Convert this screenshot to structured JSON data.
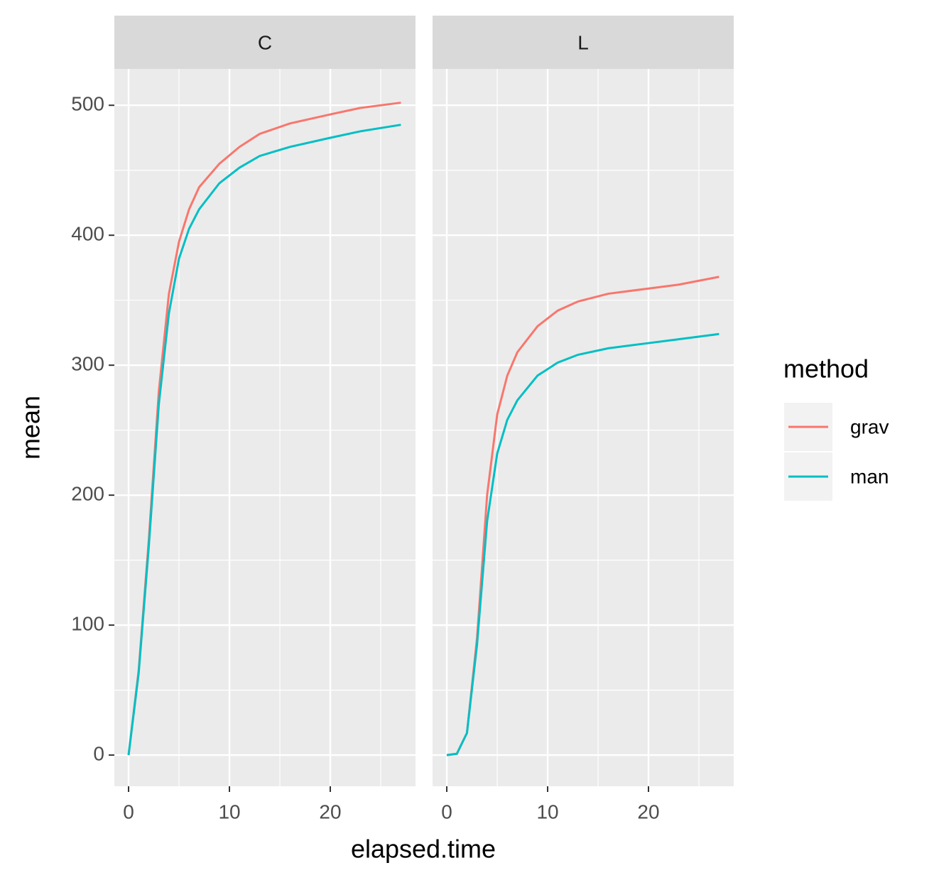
{
  "xlabel": "elapsed.time",
  "ylabel": "mean",
  "legend_title": "method",
  "grid": true,
  "minor_grid": true,
  "chart_data": [
    {
      "type": "line",
      "title": "C",
      "x": [
        0,
        1,
        2,
        3,
        4,
        5,
        6,
        7,
        9,
        11,
        13,
        16,
        20,
        23,
        27
      ],
      "series": [
        {
          "name": "grav",
          "color": "#f8766d",
          "values": [
            0,
            65,
            165,
            280,
            355,
            395,
            420,
            437,
            455,
            468,
            478,
            486,
            493,
            498,
            502
          ]
        },
        {
          "name": "man",
          "color": "#00bfc4",
          "values": [
            0,
            63,
            160,
            270,
            340,
            382,
            405,
            420,
            440,
            452,
            461,
            468,
            475,
            480,
            485
          ]
        }
      ],
      "xlim": [
        -1.41,
        28.45
      ],
      "ylim": [
        -24,
        528
      ],
      "xticks": [
        0,
        10,
        20
      ],
      "yticks": [
        0,
        100,
        200,
        300,
        400,
        500
      ]
    },
    {
      "type": "line",
      "title": "L",
      "x": [
        0,
        1,
        2,
        3,
        4,
        5,
        6,
        7,
        9,
        11,
        13,
        16,
        20,
        23,
        27
      ],
      "series": [
        {
          "name": "grav",
          "color": "#f8766d",
          "values": [
            0,
            1,
            17,
            90,
            200,
            262,
            292,
            310,
            330,
            342,
            349,
            355,
            359,
            362,
            368
          ]
        },
        {
          "name": "man",
          "color": "#00bfc4",
          "values": [
            0,
            1,
            17,
            85,
            180,
            232,
            258,
            273,
            292,
            302,
            308,
            313,
            317,
            320,
            324
          ]
        }
      ],
      "xlim": [
        -1.41,
        28.45
      ],
      "ylim": [
        -24,
        528
      ],
      "xticks": [
        0,
        10,
        20
      ],
      "yticks": [
        0,
        100,
        200,
        300,
        400,
        500
      ]
    }
  ]
}
